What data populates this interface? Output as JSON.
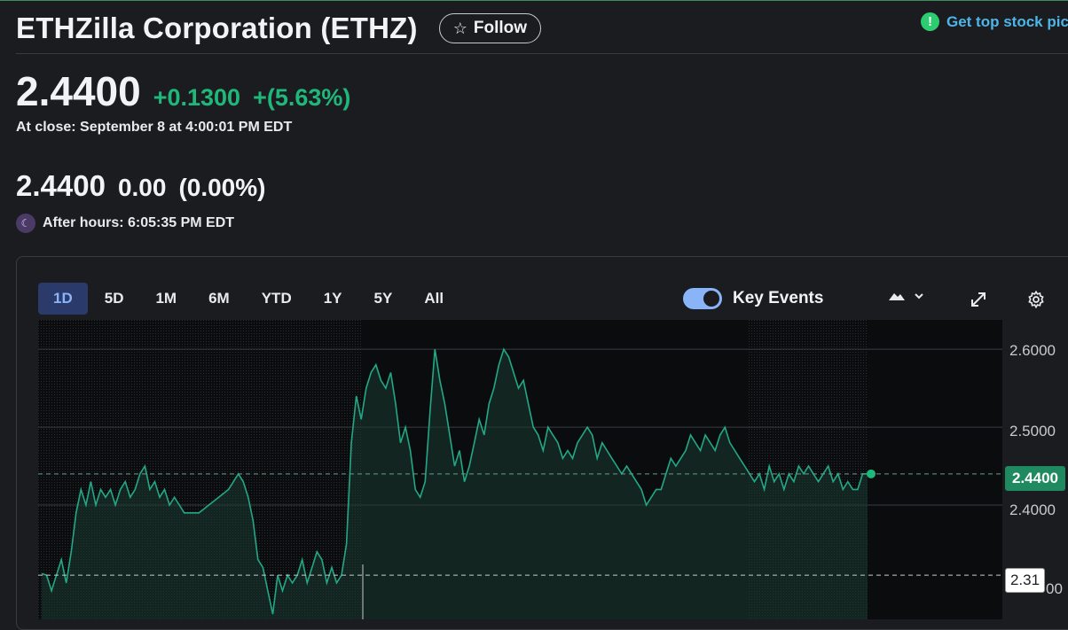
{
  "header": {
    "company": "ETHZilla Corporation (ETHZ)",
    "follow_label": "Follow",
    "promo_text": "Get top stock pic"
  },
  "quote": {
    "price": "2.4400",
    "change": "+0.1300",
    "change_pct": "+(5.63%)",
    "close_time": "At close: September 8 at 4:00:01 PM EDT",
    "after_hours_price": "2.4400",
    "after_hours_change": "0.00",
    "after_hours_change_pct": "(0.00%)",
    "after_hours_time": "After hours: 6:05:35 PM EDT"
  },
  "chart_controls": {
    "ranges": [
      {
        "label": "1D",
        "active": true
      },
      {
        "label": "5D",
        "active": false
      },
      {
        "label": "1M",
        "active": false
      },
      {
        "label": "6M",
        "active": false
      },
      {
        "label": "YTD",
        "active": false
      },
      {
        "label": "1Y",
        "active": false
      },
      {
        "label": "5Y",
        "active": false
      },
      {
        "label": "All",
        "active": false
      }
    ],
    "key_events_label": "Key Events",
    "key_events_on": true,
    "chart_type_icon": "mountain-chart-icon"
  },
  "colors": {
    "up": "#1fb87a",
    "line": "#23a887",
    "accent": "#8ab4f8"
  },
  "chart_data": {
    "type": "area",
    "y_axis_labels": [
      "2.6000",
      "2.5000",
      "2.4000",
      "00"
    ],
    "ylim": [
      2.2533,
      2.6377
    ],
    "last_price_badge": "2.4400",
    "crosshair_badge": "2.31",
    "reference_line": 2.44,
    "points": [
      [
        0,
        2.312
      ],
      [
        1,
        2.31
      ],
      [
        2,
        2.29
      ],
      [
        3,
        2.31
      ],
      [
        4,
        2.33
      ],
      [
        5,
        2.3
      ],
      [
        6,
        2.34
      ],
      [
        7,
        2.39
      ],
      [
        8,
        2.42
      ],
      [
        9,
        2.4
      ],
      [
        10,
        2.43
      ],
      [
        11,
        2.4
      ],
      [
        12,
        2.42
      ],
      [
        13,
        2.41
      ],
      [
        14,
        2.42
      ],
      [
        15,
        2.4
      ],
      [
        16,
        2.42
      ],
      [
        17,
        2.43
      ],
      [
        18,
        2.41
      ],
      [
        19,
        2.42
      ],
      [
        20,
        2.44
      ],
      [
        21,
        2.45
      ],
      [
        22,
        2.42
      ],
      [
        23,
        2.43
      ],
      [
        24,
        2.41
      ],
      [
        25,
        2.42
      ],
      [
        26,
        2.4
      ],
      [
        27,
        2.41
      ],
      [
        28,
        2.4
      ],
      [
        29,
        2.39
      ],
      [
        30,
        2.39
      ],
      [
        32,
        2.39
      ],
      [
        34,
        2.4
      ],
      [
        36,
        2.41
      ],
      [
        38,
        2.42
      ],
      [
        40,
        2.44
      ],
      [
        41,
        2.43
      ],
      [
        42,
        2.41
      ],
      [
        43,
        2.38
      ],
      [
        44,
        2.33
      ],
      [
        45,
        2.32
      ],
      [
        46,
        2.29
      ],
      [
        47,
        2.26
      ],
      [
        48,
        2.31
      ],
      [
        49,
        2.29
      ],
      [
        50,
        2.31
      ],
      [
        51,
        2.3
      ],
      [
        52,
        2.31
      ],
      [
        53,
        2.33
      ],
      [
        54,
        2.3
      ],
      [
        55,
        2.32
      ],
      [
        56,
        2.34
      ],
      [
        57,
        2.33
      ],
      [
        58,
        2.3
      ],
      [
        59,
        2.32
      ],
      [
        60,
        2.3
      ],
      [
        61,
        2.31
      ],
      [
        62,
        2.35
      ],
      [
        63,
        2.48
      ],
      [
        64,
        2.54
      ],
      [
        65,
        2.51
      ],
      [
        66,
        2.55
      ],
      [
        67,
        2.57
      ],
      [
        68,
        2.58
      ],
      [
        69,
        2.56
      ],
      [
        70,
        2.55
      ],
      [
        71,
        2.57
      ],
      [
        72,
        2.53
      ],
      [
        73,
        2.48
      ],
      [
        74,
        2.5
      ],
      [
        75,
        2.47
      ],
      [
        76,
        2.42
      ],
      [
        77,
        2.41
      ],
      [
        78,
        2.43
      ],
      [
        79,
        2.52
      ],
      [
        80,
        2.6
      ],
      [
        81,
        2.56
      ],
      [
        82,
        2.53
      ],
      [
        83,
        2.49
      ],
      [
        84,
        2.45
      ],
      [
        85,
        2.47
      ],
      [
        86,
        2.43
      ],
      [
        87,
        2.45
      ],
      [
        88,
        2.48
      ],
      [
        89,
        2.51
      ],
      [
        90,
        2.49
      ],
      [
        91,
        2.53
      ],
      [
        92,
        2.55
      ],
      [
        93,
        2.58
      ],
      [
        94,
        2.6
      ],
      [
        95,
        2.59
      ],
      [
        96,
        2.57
      ],
      [
        97,
        2.55
      ],
      [
        98,
        2.56
      ],
      [
        99,
        2.53
      ],
      [
        100,
        2.5
      ],
      [
        101,
        2.49
      ],
      [
        102,
        2.47
      ],
      [
        103,
        2.5
      ],
      [
        104,
        2.49
      ],
      [
        105,
        2.48
      ],
      [
        106,
        2.46
      ],
      [
        107,
        2.47
      ],
      [
        108,
        2.46
      ],
      [
        109,
        2.48
      ],
      [
        110,
        2.49
      ],
      [
        111,
        2.5
      ],
      [
        112,
        2.49
      ],
      [
        113,
        2.46
      ],
      [
        114,
        2.48
      ],
      [
        115,
        2.47
      ],
      [
        116,
        2.46
      ],
      [
        117,
        2.45
      ],
      [
        118,
        2.44
      ],
      [
        119,
        2.45
      ],
      [
        120,
        2.44
      ],
      [
        121,
        2.43
      ],
      [
        122,
        2.42
      ],
      [
        123,
        2.4
      ],
      [
        124,
        2.41
      ],
      [
        125,
        2.42
      ],
      [
        126,
        2.42
      ],
      [
        127,
        2.44
      ],
      [
        128,
        2.46
      ],
      [
        129,
        2.45
      ],
      [
        130,
        2.46
      ],
      [
        131,
        2.47
      ],
      [
        132,
        2.49
      ],
      [
        133,
        2.48
      ],
      [
        134,
        2.47
      ],
      [
        135,
        2.49
      ],
      [
        136,
        2.48
      ],
      [
        137,
        2.47
      ],
      [
        138,
        2.49
      ],
      [
        139,
        2.5
      ],
      [
        140,
        2.48
      ],
      [
        141,
        2.47
      ],
      [
        142,
        2.46
      ],
      [
        143,
        2.45
      ],
      [
        144,
        2.44
      ],
      [
        145,
        2.43
      ],
      [
        146,
        2.44
      ],
      [
        147,
        2.42
      ],
      [
        148,
        2.45
      ],
      [
        149,
        2.43
      ],
      [
        150,
        2.44
      ],
      [
        151,
        2.42
      ],
      [
        152,
        2.44
      ],
      [
        153,
        2.43
      ],
      [
        154,
        2.45
      ],
      [
        155,
        2.44
      ],
      [
        156,
        2.45
      ],
      [
        157,
        2.44
      ],
      [
        158,
        2.43
      ],
      [
        159,
        2.44
      ],
      [
        160,
        2.45
      ],
      [
        161,
        2.43
      ],
      [
        162,
        2.44
      ],
      [
        163,
        2.42
      ],
      [
        164,
        2.43
      ],
      [
        165,
        2.42
      ],
      [
        166,
        2.42
      ],
      [
        167,
        2.44
      ],
      [
        168,
        2.44
      ]
    ]
  }
}
